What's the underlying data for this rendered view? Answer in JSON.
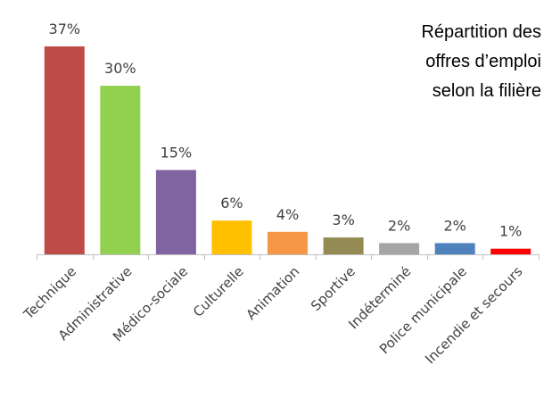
{
  "chart_data": {
    "type": "bar",
    "title_lines": [
      "Répartition des",
      "offres d’emploi",
      "selon la filière"
    ],
    "categories": [
      "Technique",
      "Administrative",
      "Médico-sociale",
      "Culturelle",
      "Animation",
      "Sportive",
      "Indéterminé",
      "Police municipale",
      "Incendie et secours"
    ],
    "values": [
      37,
      30,
      15,
      6,
      4,
      3,
      2,
      2,
      1
    ],
    "data_labels": [
      "37%",
      "30%",
      "15%",
      "6%",
      "4%",
      "3%",
      "2%",
      "2%",
      "1%"
    ],
    "colors": [
      "#be4b48",
      "#92d050",
      "#8064a2",
      "#ffc000",
      "#f79646",
      "#948a54",
      "#a5a5a5",
      "#4f81bd",
      "#ff0000"
    ],
    "ylim": [
      0,
      37
    ],
    "grid": false,
    "legend": "none"
  }
}
